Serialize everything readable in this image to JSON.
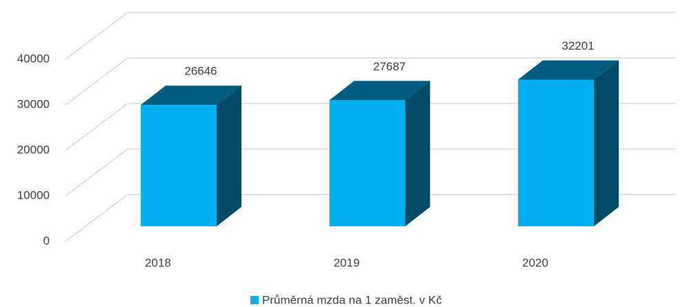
{
  "chart_data": {
    "type": "bar3d",
    "categories": [
      "2018",
      "2019",
      "2020"
    ],
    "series": [
      {
        "name": "Průměrná mzda na 1 zaměst. v Kč",
        "color": "#00b0f0",
        "values": [
          26646,
          27687,
          32201
        ]
      }
    ],
    "ylim": [
      0,
      40000
    ],
    "yticks": [
      0,
      10000,
      20000,
      30000,
      40000
    ],
    "grid": true,
    "legend": "bottom"
  }
}
